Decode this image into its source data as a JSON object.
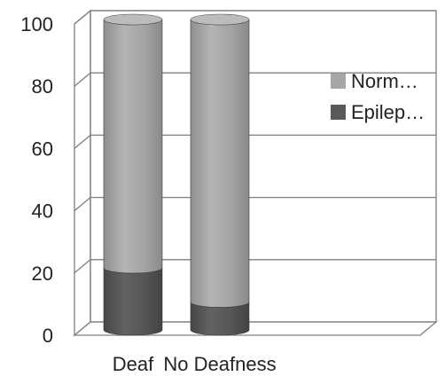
{
  "chart_data": {
    "type": "bar",
    "stacked": true,
    "three_d": true,
    "categories": [
      "Deaf",
      "No Deafness"
    ],
    "series": [
      {
        "name": "Epilep…",
        "color": "#595959",
        "values": [
          20,
          9
        ]
      },
      {
        "name": "Norm…",
        "color": "#a6a6a6",
        "values": [
          80,
          91
        ]
      }
    ],
    "ylim": [
      0,
      100
    ],
    "yticks": [
      0,
      20,
      40,
      60,
      80,
      100
    ],
    "grid": true,
    "legend_position": "right"
  }
}
